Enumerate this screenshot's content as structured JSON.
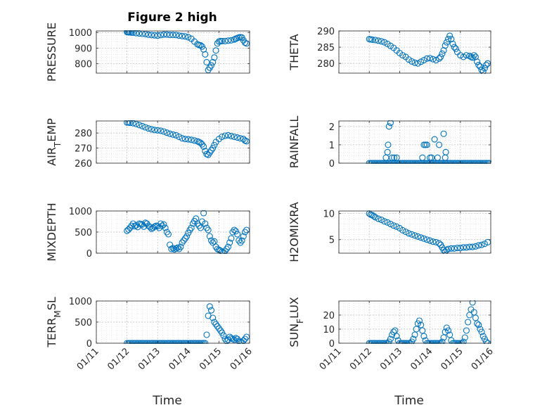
{
  "title": "Figure 2 high",
  "chart_data": [
    {
      "type": "scatter",
      "ylabel_parts": [
        {
          "t": "PRESSURE"
        }
      ],
      "xlabel": "",
      "yticks": [
        800,
        900,
        1000
      ],
      "ylim": [
        740,
        1010
      ],
      "x": [
        12.0,
        12.03,
        12.06,
        12.1,
        12.15,
        12.2,
        12.3,
        12.4,
        12.5,
        12.6,
        12.7,
        12.8,
        12.9,
        13.0,
        13.1,
        13.2,
        13.3,
        13.4,
        13.5,
        13.6,
        13.7,
        13.8,
        13.9,
        14.0,
        14.1,
        14.2,
        14.3,
        14.35,
        14.4,
        14.45,
        14.5,
        14.55,
        14.6,
        14.65,
        14.7,
        14.75,
        14.8,
        14.85,
        14.9,
        14.95,
        15.0,
        15.05,
        15.1,
        15.2,
        15.3,
        15.4,
        15.5,
        15.55,
        15.6,
        15.65,
        15.7,
        15.75,
        15.8,
        15.85,
        15.9
      ],
      "y": [
        1003,
        1002,
        1002,
        1001,
        1000,
        999,
        996,
        994,
        992,
        990,
        986,
        984,
        982,
        980,
        984,
        987,
        987,
        985,
        985,
        984,
        980,
        977,
        975,
        970,
        960,
        942,
        925,
        920,
        918,
        910,
        892,
        860,
        810,
        760,
        775,
        790,
        810,
        840,
        885,
        930,
        942,
        945,
        945,
        945,
        948,
        950,
        955,
        960,
        965,
        968,
        970,
        968,
        950,
        935,
        930
      ]
    },
    {
      "type": "scatter",
      "ylabel_parts": [
        {
          "t": "THETA"
        }
      ],
      "xlabel": "",
      "yticks": [
        280,
        285,
        290
      ],
      "ylim": [
        277,
        290
      ],
      "x": [
        12.0,
        12.05,
        12.1,
        12.2,
        12.3,
        12.4,
        12.5,
        12.6,
        12.7,
        12.8,
        12.9,
        13.0,
        13.1,
        13.2,
        13.3,
        13.4,
        13.5,
        13.6,
        13.7,
        13.8,
        13.9,
        14.0,
        14.1,
        14.2,
        14.3,
        14.35,
        14.4,
        14.45,
        14.5,
        14.55,
        14.6,
        14.65,
        14.7,
        14.75,
        14.8,
        14.85,
        14.9,
        15.0,
        15.1,
        15.2,
        15.3,
        15.35,
        15.4,
        15.45,
        15.5,
        15.55,
        15.6,
        15.65,
        15.7,
        15.75,
        15.8,
        15.85,
        15.9
      ],
      "y": [
        287.5,
        287.4,
        287.3,
        287.2,
        287.0,
        286.8,
        286.5,
        286.0,
        285.4,
        284.8,
        284.0,
        283.2,
        282.5,
        282.0,
        281.2,
        280.6,
        280.2,
        280.0,
        280.5,
        281.0,
        281.5,
        281.6,
        281.3,
        281.0,
        281.5,
        282.0,
        283.0,
        284.0,
        285.5,
        286.5,
        287.5,
        288.5,
        287.5,
        286.0,
        285.0,
        284.5,
        283.5,
        282.5,
        282.0,
        282.5,
        282.3,
        282.0,
        281.8,
        282.5,
        282.0,
        280.5,
        279.5,
        279.0,
        278.0,
        277.5,
        278.5,
        279.5,
        280.0
      ]
    },
    {
      "type": "scatter",
      "ylabel_parts": [
        {
          "t": "AIR"
        },
        {
          "t": "T",
          "sub": true
        },
        {
          "t": "EMP"
        }
      ],
      "xlabel": "",
      "yticks": [
        260,
        270,
        280
      ],
      "ylim": [
        260,
        288
      ],
      "x": [
        12.0,
        12.05,
        12.1,
        12.2,
        12.3,
        12.4,
        12.5,
        12.6,
        12.7,
        12.8,
        12.9,
        13.0,
        13.1,
        13.2,
        13.3,
        13.4,
        13.5,
        13.6,
        13.7,
        13.8,
        13.9,
        14.0,
        14.1,
        14.2,
        14.3,
        14.35,
        14.4,
        14.45,
        14.5,
        14.55,
        14.6,
        14.65,
        14.7,
        14.75,
        14.8,
        14.85,
        14.9,
        15.0,
        15.1,
        15.2,
        15.3,
        15.4,
        15.5,
        15.6,
        15.7,
        15.8,
        15.85,
        15.9
      ],
      "y": [
        287,
        287,
        286.8,
        286.5,
        286.0,
        285.3,
        284.6,
        283.8,
        283.0,
        282.5,
        282.0,
        281.8,
        281.5,
        281.0,
        280.2,
        279.5,
        279.0,
        278.5,
        277.5,
        276.5,
        276.0,
        275.8,
        275.5,
        275.0,
        274.5,
        274.0,
        273.5,
        272.5,
        271.0,
        268.0,
        266.0,
        265.5,
        267.0,
        268.5,
        270.0,
        272.0,
        274.0,
        276.0,
        277.5,
        278.2,
        278.5,
        278.0,
        277.5,
        277.0,
        276.5,
        276.0,
        275.0,
        274.5
      ]
    },
    {
      "type": "scatter",
      "ylabel_parts": [
        {
          "t": "RAINFALL"
        }
      ],
      "xlabel": "",
      "yticks": [
        0,
        1,
        2
      ],
      "ylim": [
        0,
        2.3
      ],
      "x": [
        12.0,
        12.05,
        12.1,
        12.15,
        12.2,
        12.25,
        12.3,
        12.35,
        12.4,
        12.45,
        12.5,
        12.55,
        12.6,
        12.65,
        12.7,
        12.75,
        12.8,
        12.85,
        12.9,
        12.95,
        13.0,
        13.05,
        13.1,
        13.15,
        13.2,
        13.25,
        13.3,
        13.35,
        13.4,
        13.45,
        13.5,
        13.55,
        13.6,
        13.65,
        13.7,
        13.75,
        13.8,
        13.85,
        13.9,
        13.95,
        14.0,
        14.05,
        14.1,
        14.15,
        14.2,
        14.25,
        14.3,
        14.35,
        14.4,
        14.45,
        14.5,
        14.55,
        14.6,
        14.65,
        14.7,
        14.75,
        14.8,
        14.85,
        14.9,
        14.95,
        15.0,
        15.05,
        15.1,
        15.15,
        15.2,
        15.25,
        15.3,
        15.35,
        15.4,
        15.45,
        15.5,
        15.55,
        15.6,
        15.65,
        15.7,
        15.75,
        15.8,
        15.85,
        15.9,
        15.95,
        12.55,
        12.6,
        12.62,
        12.65,
        12.7,
        12.75,
        12.82,
        12.9,
        13.75,
        13.8,
        13.85,
        13.9,
        14.0,
        14.05,
        14.15,
        14.25,
        14.3,
        14.45,
        14.5,
        14.52
      ],
      "y": [
        0,
        0,
        0,
        0,
        0,
        0,
        0,
        0,
        0,
        0,
        0,
        0,
        0,
        0,
        0,
        0,
        0,
        0,
        0,
        0,
        0,
        0,
        0,
        0,
        0,
        0,
        0,
        0,
        0,
        0,
        0,
        0,
        0,
        0,
        0,
        0,
        0,
        0,
        0,
        0,
        0,
        0,
        0,
        0,
        0,
        0,
        0,
        0,
        0,
        0,
        0,
        0,
        0,
        0,
        0,
        0,
        0,
        0,
        0,
        0,
        0,
        0,
        0,
        0,
        0,
        0,
        0,
        0,
        0,
        0,
        0,
        0,
        0,
        0,
        0,
        0,
        0,
        0,
        0,
        0,
        0.3,
        0.6,
        1.0,
        2.0,
        2.2,
        0.3,
        0.3,
        0.3,
        0.3,
        1.0,
        1.0,
        1.0,
        0.3,
        0.3,
        1.3,
        0.3,
        1.0,
        1.6,
        0.3,
        0.6
      ]
    },
    {
      "type": "scatter",
      "ylabel_parts": [
        {
          "t": "MIXDEPTH"
        }
      ],
      "xlabel": "",
      "yticks": [
        0,
        500,
        1000
      ],
      "ylim": [
        0,
        1000
      ],
      "x": [
        12.0,
        12.05,
        12.1,
        12.15,
        12.2,
        12.25,
        12.3,
        12.35,
        12.4,
        12.45,
        12.5,
        12.55,
        12.6,
        12.65,
        12.7,
        12.75,
        12.8,
        12.85,
        12.9,
        12.95,
        13.0,
        13.05,
        13.1,
        13.15,
        13.2,
        13.25,
        13.3,
        13.35,
        13.4,
        13.45,
        13.5,
        13.55,
        13.6,
        13.65,
        13.7,
        13.75,
        13.8,
        13.85,
        13.9,
        13.95,
        14.0,
        14.05,
        14.1,
        14.15,
        14.2,
        14.25,
        14.3,
        14.35,
        14.4,
        14.45,
        14.5,
        14.55,
        14.6,
        14.65,
        14.7,
        14.75,
        14.8,
        14.85,
        14.9,
        14.95,
        15.0,
        15.05,
        15.1,
        15.15,
        15.2,
        15.25,
        15.3,
        15.35,
        15.4,
        15.45,
        15.5,
        15.55,
        15.6,
        15.65,
        15.7,
        15.75,
        15.8,
        15.85,
        15.9
      ],
      "y": [
        530,
        560,
        600,
        650,
        700,
        640,
        660,
        620,
        700,
        690,
        680,
        630,
        720,
        700,
        650,
        620,
        580,
        600,
        630,
        650,
        640,
        600,
        700,
        650,
        680,
        600,
        500,
        450,
        200,
        100,
        120,
        90,
        110,
        130,
        100,
        150,
        250,
        300,
        350,
        400,
        480,
        550,
        600,
        700,
        760,
        820,
        700,
        650,
        600,
        750,
        950,
        700,
        600,
        550,
        400,
        300,
        250,
        280,
        150,
        100,
        80,
        60,
        30,
        20,
        50,
        100,
        150,
        250,
        350,
        500,
        550,
        520,
        450,
        300,
        250,
        300,
        400,
        500,
        550
      ]
    },
    {
      "type": "scatter",
      "ylabel_parts": [
        {
          "t": "H2OMIXRA"
        }
      ],
      "xlabel": "",
      "yticks": [
        5,
        10
      ],
      "ylim": [
        2.4,
        10.5
      ],
      "x": [
        12.0,
        12.05,
        12.1,
        12.15,
        12.2,
        12.3,
        12.4,
        12.5,
        12.6,
        12.7,
        12.8,
        12.9,
        13.0,
        13.1,
        13.2,
        13.3,
        13.4,
        13.5,
        13.6,
        13.7,
        13.8,
        13.9,
        14.0,
        14.1,
        14.2,
        14.3,
        14.35,
        14.4,
        14.45,
        14.5,
        14.55,
        14.6,
        14.7,
        14.8,
        14.9,
        15.0,
        15.1,
        15.2,
        15.3,
        15.4,
        15.5,
        15.6,
        15.7,
        15.8,
        15.9
      ],
      "y": [
        10.0,
        9.8,
        9.7,
        9.5,
        9.3,
        9.0,
        8.8,
        8.5,
        8.3,
        8.0,
        7.7,
        7.5,
        7.2,
        6.8,
        6.5,
        6.2,
        6.0,
        5.8,
        5.6,
        5.4,
        5.2,
        5.0,
        4.8,
        4.6,
        4.5,
        4.3,
        4.0,
        3.5,
        3.0,
        2.7,
        3.0,
        3.2,
        3.3,
        3.3,
        3.4,
        3.4,
        3.5,
        3.5,
        3.6,
        3.6,
        3.7,
        3.9,
        4.0,
        4.2,
        4.5
      ]
    },
    {
      "type": "scatter",
      "ylabel_parts": [
        {
          "t": "TERR"
        },
        {
          "t": "M",
          "sub": true
        },
        {
          "t": "SL"
        }
      ],
      "xlabel": "Time",
      "yticks": [
        0,
        500,
        1000
      ],
      "ylim": [
        0,
        1000
      ],
      "x": [
        12.0,
        12.05,
        12.1,
        12.15,
        12.2,
        12.25,
        12.3,
        12.35,
        12.4,
        12.45,
        12.5,
        12.55,
        12.6,
        12.65,
        12.7,
        12.75,
        12.8,
        12.85,
        12.9,
        12.95,
        13.0,
        13.05,
        13.1,
        13.15,
        13.2,
        13.25,
        13.3,
        13.35,
        13.4,
        13.45,
        13.5,
        13.55,
        13.6,
        13.65,
        13.7,
        13.75,
        13.8,
        13.85,
        13.9,
        13.95,
        14.0,
        14.05,
        14.1,
        14.15,
        14.2,
        14.25,
        14.3,
        14.35,
        14.4,
        14.45,
        14.5,
        14.55,
        14.6,
        14.65,
        14.7,
        14.75,
        14.8,
        14.85,
        14.9,
        14.95,
        15.0,
        15.05,
        15.1,
        15.15,
        15.2,
        15.25,
        15.3,
        15.35,
        15.4,
        15.45,
        15.5,
        15.55,
        15.6,
        15.65,
        15.7,
        15.75,
        15.8,
        15.85,
        15.9
      ],
      "y": [
        0,
        0,
        0,
        0,
        0,
        0,
        0,
        0,
        0,
        0,
        0,
        0,
        0,
        0,
        0,
        0,
        0,
        0,
        0,
        0,
        0,
        0,
        0,
        0,
        0,
        0,
        0,
        0,
        0,
        0,
        0,
        0,
        0,
        0,
        0,
        0,
        0,
        0,
        0,
        0,
        0,
        0,
        0,
        0,
        0,
        0,
        0,
        0,
        0,
        0,
        0,
        0,
        200,
        650,
        870,
        780,
        600,
        500,
        450,
        400,
        350,
        300,
        250,
        180,
        100,
        50,
        80,
        150,
        120,
        100,
        80,
        120,
        100,
        50,
        30,
        20,
        60,
        100,
        150
      ]
    },
    {
      "type": "scatter",
      "ylabel_parts": [
        {
          "t": "SUN"
        },
        {
          "t": "F",
          "sub": true
        },
        {
          "t": "LUX"
        }
      ],
      "xlabel": "Time",
      "yticks": [
        0,
        10,
        20
      ],
      "ylim": [
        0,
        30
      ],
      "x": [
        12.0,
        12.05,
        12.1,
        12.15,
        12.2,
        12.25,
        12.3,
        12.35,
        12.4,
        12.45,
        12.5,
        12.55,
        12.6,
        12.65,
        12.7,
        12.75,
        12.8,
        12.85,
        12.9,
        12.95,
        13.0,
        13.05,
        13.1,
        13.15,
        13.2,
        13.25,
        13.3,
        13.35,
        13.4,
        13.45,
        13.5,
        13.55,
        13.6,
        13.65,
        13.7,
        13.75,
        13.8,
        13.85,
        13.9,
        13.95,
        14.0,
        14.05,
        14.1,
        14.15,
        14.2,
        14.25,
        14.3,
        14.35,
        14.4,
        14.45,
        14.5,
        14.55,
        14.6,
        14.65,
        14.7,
        14.75,
        14.8,
        14.85,
        14.9,
        14.95,
        15.0,
        15.05,
        15.1,
        15.15,
        15.2,
        15.25,
        15.3,
        15.35,
        15.4,
        15.45,
        15.5,
        15.55,
        15.6,
        15.65,
        15.7,
        15.75,
        15.8,
        15.85,
        15.9
      ],
      "y": [
        0,
        0,
        0,
        0,
        0,
        0,
        0,
        0,
        0,
        0,
        0,
        0,
        0,
        1,
        3,
        6,
        8,
        9,
        5,
        2,
        0,
        0,
        0,
        0,
        0,
        0,
        0,
        0,
        1,
        3,
        6,
        10,
        14,
        16,
        13,
        9,
        5,
        2,
        0,
        0,
        0,
        0,
        0,
        0,
        0,
        0,
        0,
        0,
        1,
        4,
        8,
        11,
        9,
        6,
        2,
        0,
        0,
        0,
        0,
        0,
        0,
        0,
        1,
        4,
        9,
        15,
        20,
        24,
        29,
        22,
        18,
        14,
        13,
        10,
        8,
        5,
        3,
        1,
        0
      ]
    }
  ],
  "xticks": [
    {
      "v": 11,
      "label": "01/11"
    },
    {
      "v": 12,
      "label": "01/12"
    },
    {
      "v": 13,
      "label": "01/13"
    },
    {
      "v": 14,
      "label": "01/14"
    },
    {
      "v": 15,
      "label": "01/15"
    },
    {
      "v": 16,
      "label": "01/16"
    }
  ],
  "xlim": [
    11,
    16
  ],
  "marker_color": "#0072BD"
}
